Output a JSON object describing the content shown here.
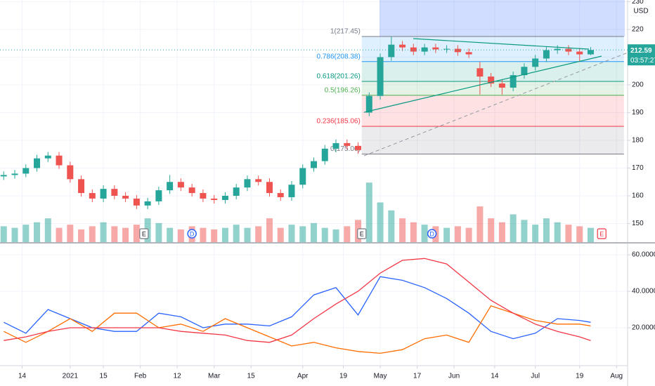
{
  "chart_data": [
    {
      "type": "candlestick",
      "unit": "USD",
      "countdown": "03:57:27",
      "xlim": [
        -1,
        169
      ],
      "ylim": [
        143.3,
        230.6
      ],
      "yticks": [
        150,
        160,
        170,
        180,
        190,
        200,
        210,
        220,
        230
      ],
      "grid": true,
      "up_color": "#26a69a",
      "down_color": "#ef5350",
      "candles": {
        "x": [
          0,
          3,
          6,
          9,
          12,
          15,
          18,
          21,
          24,
          27,
          30,
          33,
          36,
          39,
          42,
          45,
          48,
          51,
          54,
          57,
          60,
          63,
          66,
          69,
          72,
          75,
          78,
          81,
          84,
          87,
          90,
          93,
          96,
          99,
          102,
          105,
          108,
          111,
          114,
          117,
          120,
          123,
          126,
          129,
          132,
          135,
          138,
          141,
          144,
          147,
          150,
          153,
          156,
          159
        ],
        "open": [
          167,
          167.5,
          168,
          170,
          173.5,
          174.5,
          171,
          166,
          161,
          159,
          162.5,
          160,
          159,
          156.5,
          158,
          162,
          165,
          163,
          161,
          159,
          158.5,
          160,
          163,
          166,
          165,
          161,
          159.5,
          164,
          170,
          172.5,
          177,
          179,
          178,
          190,
          196,
          210,
          214.5,
          213.5,
          212,
          213.5,
          212.8,
          213,
          211.8,
          206,
          203,
          200.5,
          199,
          203.5,
          206.5,
          209.5,
          212.5,
          213,
          212,
          211
        ],
        "high": [
          168.8,
          169.3,
          171.3,
          174.8,
          175.8,
          175.8,
          172.3,
          167.3,
          162.3,
          163.8,
          163.8,
          161.3,
          160.3,
          159.3,
          163.3,
          167.5,
          166.3,
          164.3,
          162.3,
          160.3,
          161.3,
          164.3,
          167.3,
          167.3,
          166.3,
          162.3,
          165.3,
          171.3,
          173.8,
          178.3,
          180.3,
          180.3,
          179.3,
          197.3,
          211.3,
          217.45,
          215.8,
          214.8,
          214.8,
          214.8,
          214.3,
          214.3,
          213.1,
          208.3,
          204.3,
          201.8,
          204.8,
          207.8,
          210.8,
          213.8,
          214.3,
          214.3,
          213.3,
          213.6
        ],
        "low": [
          165.7,
          166.2,
          166.7,
          168.7,
          172.2,
          169.7,
          164.7,
          159.7,
          157.7,
          157.7,
          158.7,
          157.7,
          155.2,
          155.2,
          156.7,
          160.7,
          161.7,
          159.7,
          157.7,
          157.2,
          157.2,
          158.7,
          161.7,
          163.7,
          159.7,
          158.2,
          158.2,
          162.7,
          168.7,
          171.2,
          175.7,
          176.7,
          175.2,
          188.7,
          194.7,
          208.7,
          212.2,
          210.7,
          210.7,
          211.5,
          211.5,
          210.5,
          209.7,
          196.5,
          199.2,
          196.5,
          197.7,
          202.2,
          205.2,
          208.2,
          211.2,
          210.7,
          208.5,
          210.7
        ],
        "close": [
          167.5,
          168,
          170,
          173.5,
          174.5,
          171,
          166,
          161,
          159,
          162.5,
          160,
          159,
          156.5,
          158,
          162,
          165,
          163,
          161,
          159,
          158.5,
          160,
          163,
          166,
          165,
          161,
          159.5,
          164,
          170,
          172.5,
          177,
          179,
          178,
          176.5,
          196,
          210,
          214.5,
          213.5,
          212,
          213.5,
          212.8,
          213,
          211.8,
          211,
          203,
          200.5,
          199,
          203.5,
          206.5,
          209.5,
          212.5,
          213,
          212,
          211,
          212.59
        ],
        "volume": [
          20,
          18,
          22,
          25,
          30,
          18,
          22,
          16,
          20,
          25,
          20,
          18,
          22,
          30,
          24,
          18,
          16,
          20,
          18,
          16,
          18,
          22,
          18,
          20,
          30,
          18,
          22,
          20,
          24,
          18,
          16,
          20,
          28,
          75,
          50,
          40,
          30,
          25,
          22,
          20,
          18,
          20,
          18,
          45,
          30,
          25,
          35,
          28,
          22,
          30,
          25,
          22,
          20,
          18
        ]
      },
      "fib": {
        "x_start": 97,
        "x_end": 168,
        "levels": [
          {
            "value": 217.45,
            "label": "1(217.45)",
            "color": "#787b86"
          },
          {
            "value": 208.38,
            "label": "0.786(208.38)",
            "color": "#2196f3"
          },
          {
            "value": 201.26,
            "label": "0.618(201.26)",
            "color": "#089981"
          },
          {
            "value": 196.26,
            "label": "0.5(196.26)",
            "color": "#4caf50"
          },
          {
            "value": 185.06,
            "label": "0.236(185.06)",
            "color": "#f23645"
          },
          {
            "value": 175.06,
            "label": "0(175.06)",
            "color": "#787b86"
          }
        ]
      },
      "events": [
        {
          "x": 38,
          "label": "E"
        },
        {
          "x": 51,
          "label": "D"
        },
        {
          "x": 97,
          "label": "E"
        },
        {
          "x": 116,
          "label": "D"
        },
        {
          "x": 162,
          "label": "E"
        }
      ]
    },
    {
      "type": "line",
      "xlim": [
        -1,
        169
      ],
      "ylim": [
        -0.4,
        65.8
      ],
      "yticks": [
        {
          "value": 20,
          "label": "20.0000"
        },
        {
          "value": 40,
          "label": "40.0000"
        },
        {
          "value": 60,
          "label": "60.0000"
        }
      ],
      "xticks": [
        {
          "value": 5,
          "label": "14"
        },
        {
          "value": 18,
          "label": "2021"
        },
        {
          "value": 27,
          "label": "15"
        },
        {
          "value": 37,
          "label": "Feb"
        },
        {
          "value": 47,
          "label": "12"
        },
        {
          "value": 57,
          "label": "Mar"
        },
        {
          "value": 67,
          "label": "15"
        },
        {
          "value": 81,
          "label": "Apr"
        },
        {
          "value": 92,
          "label": "19"
        },
        {
          "value": 102,
          "label": "May"
        },
        {
          "value": 112,
          "label": "17"
        },
        {
          "value": 122,
          "label": "Jun"
        },
        {
          "value": 133,
          "label": "14"
        },
        {
          "value": 144,
          "label": "Jul"
        },
        {
          "value": 156,
          "label": "19"
        },
        {
          "value": 166,
          "label": "Aug"
        }
      ],
      "x": [
        0,
        6,
        12,
        18,
        24,
        30,
        36,
        42,
        48,
        54,
        60,
        66,
        72,
        78,
        84,
        90,
        96,
        102,
        108,
        114,
        120,
        126,
        132,
        138,
        144,
        150,
        156,
        159
      ],
      "series": [
        {
          "color": "#2962ff",
          "values": [
            23,
            17,
            30,
            25,
            20,
            18,
            18,
            28,
            26,
            20,
            22,
            22,
            21,
            26,
            38,
            42,
            27,
            48,
            46,
            42,
            36,
            28,
            18,
            14,
            17,
            25,
            24,
            23
          ]
        },
        {
          "color": "#ff6d00",
          "values": [
            18,
            12,
            18,
            25,
            18,
            28,
            28,
            20,
            22,
            18,
            25,
            20,
            15,
            10,
            12,
            9,
            7,
            6,
            8,
            14,
            16,
            12,
            32,
            28,
            24,
            22,
            22,
            21
          ]
        },
        {
          "color": "#f23645",
          "values": [
            13,
            15,
            18,
            20,
            20,
            20,
            20,
            20,
            18,
            17,
            16,
            13,
            12,
            16,
            25,
            33,
            40,
            50,
            57,
            58,
            55,
            45,
            35,
            28,
            22,
            18,
            15,
            13
          ]
        }
      ]
    }
  ]
}
